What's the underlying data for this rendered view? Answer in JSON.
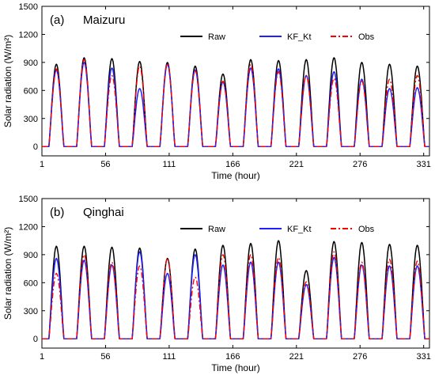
{
  "chart_data": [
    {
      "type": "line",
      "panel_label": "(a)",
      "station": "Maizuru",
      "xlabel": "Time (hour)",
      "ylabel": "Solar radiation (W/m²)",
      "ylim": [
        -100,
        1500
      ],
      "xlim": [
        1,
        336
      ],
      "xticks": [
        1,
        56,
        111,
        166,
        221,
        276,
        331
      ],
      "yticks": [
        0,
        300,
        600,
        900,
        1200,
        1500
      ],
      "legend_position": "top-right",
      "colors": {
        "Raw": "#000000",
        "KF_Kt": "#1f1fff",
        "Obs": "#ff0000"
      },
      "series": [
        {
          "name": "Raw",
          "style": "solid",
          "daily_peaks": [
            880,
            950,
            940,
            910,
            900,
            860,
            775,
            930,
            920,
            930,
            950,
            900,
            880,
            860
          ]
        },
        {
          "name": "KF_Kt",
          "style": "solid",
          "daily_peaks": [
            820,
            900,
            840,
            620,
            880,
            820,
            690,
            840,
            830,
            760,
            800,
            720,
            620,
            630
          ]
        },
        {
          "name": "Obs",
          "style": "dash-dot",
          "daily_peaks": [
            830,
            930,
            760,
            860,
            890,
            810,
            700,
            880,
            800,
            760,
            730,
            700,
            720,
            760
          ]
        }
      ]
    },
    {
      "type": "line",
      "panel_label": "(b)",
      "station": "Qinghai",
      "xlabel": "Time (hour)",
      "ylabel": "Solar radiation (W/m²)",
      "ylim": [
        -100,
        1500
      ],
      "xlim": [
        1,
        336
      ],
      "xticks": [
        1,
        56,
        111,
        166,
        221,
        276,
        331
      ],
      "yticks": [
        0,
        300,
        600,
        900,
        1200,
        1500
      ],
      "legend_position": "top-right",
      "colors": {
        "Raw": "#000000",
        "KF_Kt": "#1f1fff",
        "Obs": "#ff0000"
      },
      "series": [
        {
          "name": "Raw",
          "style": "solid",
          "daily_peaks": [
            990,
            990,
            980,
            970,
            860,
            960,
            1000,
            1020,
            1050,
            730,
            1040,
            1030,
            1010,
            1000
          ]
        },
        {
          "name": "KF_Kt",
          "style": "solid",
          "daily_peaks": [
            860,
            840,
            790,
            930,
            700,
            900,
            790,
            820,
            820,
            580,
            870,
            790,
            780,
            780
          ]
        },
        {
          "name": "Obs",
          "style": "dash-dot",
          "daily_peaks": [
            700,
            900,
            820,
            780,
            860,
            660,
            900,
            900,
            870,
            610,
            930,
            820,
            850,
            830
          ]
        }
      ]
    }
  ]
}
